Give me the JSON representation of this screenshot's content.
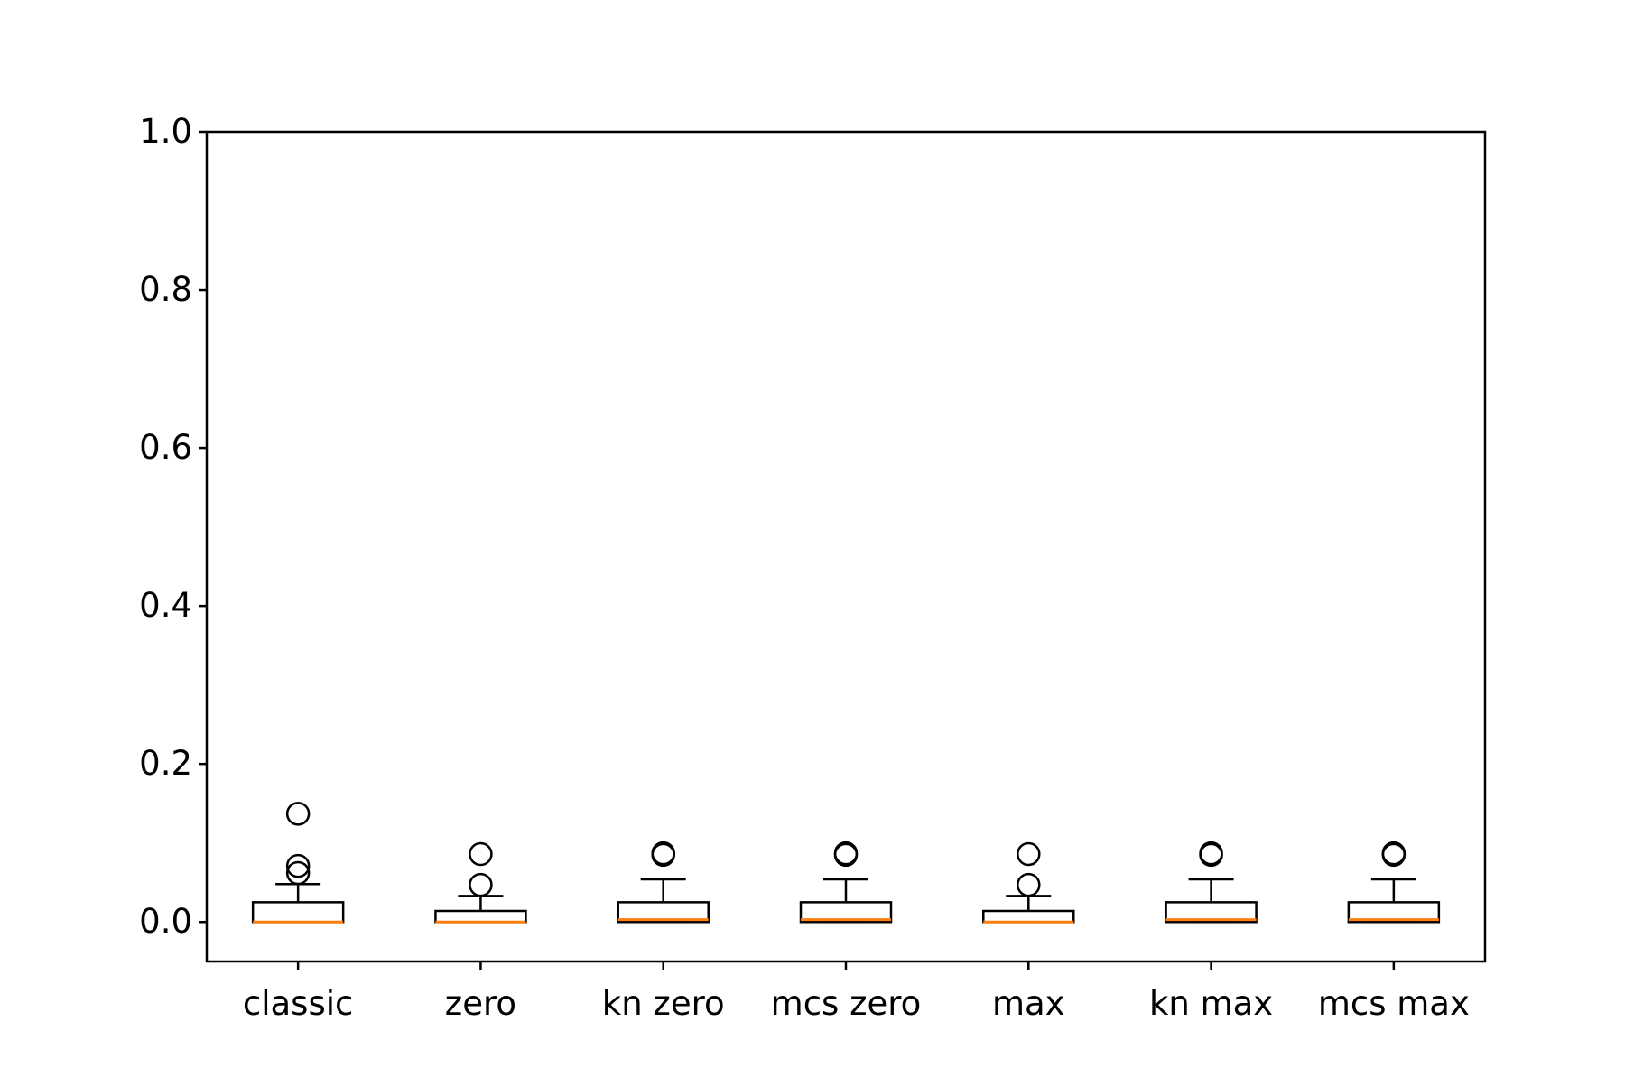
{
  "chart_data": {
    "type": "box",
    "categories": [
      "classic",
      "zero",
      "kn zero",
      "mcs zero",
      "max",
      "kn max",
      "mcs max"
    ],
    "title": "",
    "xlabel": "",
    "ylabel": "",
    "ylim": [
      -0.05,
      1.0
    ],
    "yticks": [
      "0.0",
      "0.2",
      "0.4",
      "0.6",
      "0.8",
      "1.0"
    ],
    "grid": false,
    "legend": "none",
    "colors": {
      "box": "#000000",
      "median": "#ff7f0e",
      "outlier": "#000000"
    },
    "series": [
      {
        "category": "classic",
        "min": 0.0,
        "q1": 0.0,
        "median": 0.0,
        "q3": 0.025,
        "max": 0.048,
        "outliers": [
          0.062,
          0.071,
          0.137
        ]
      },
      {
        "category": "zero",
        "min": 0.0,
        "q1": 0.0,
        "median": 0.0,
        "q3": 0.014,
        "max": 0.033,
        "outliers": [
          0.047,
          0.086
        ]
      },
      {
        "category": "kn zero",
        "min": 0.0,
        "q1": 0.0,
        "median": 0.003,
        "q3": 0.025,
        "max": 0.054,
        "outliers": [
          0.085,
          0.087
        ]
      },
      {
        "category": "mcs zero",
        "min": 0.0,
        "q1": 0.0,
        "median": 0.003,
        "q3": 0.025,
        "max": 0.054,
        "outliers": [
          0.085,
          0.087
        ]
      },
      {
        "category": "max",
        "min": 0.0,
        "q1": 0.0,
        "median": 0.0,
        "q3": 0.014,
        "max": 0.033,
        "outliers": [
          0.047,
          0.086
        ]
      },
      {
        "category": "kn max",
        "min": 0.0,
        "q1": 0.0,
        "median": 0.003,
        "q3": 0.025,
        "max": 0.054,
        "outliers": [
          0.085,
          0.087
        ]
      },
      {
        "category": "mcs max",
        "min": 0.0,
        "q1": 0.0,
        "median": 0.003,
        "q3": 0.025,
        "max": 0.054,
        "outliers": [
          0.085,
          0.087
        ]
      }
    ]
  }
}
